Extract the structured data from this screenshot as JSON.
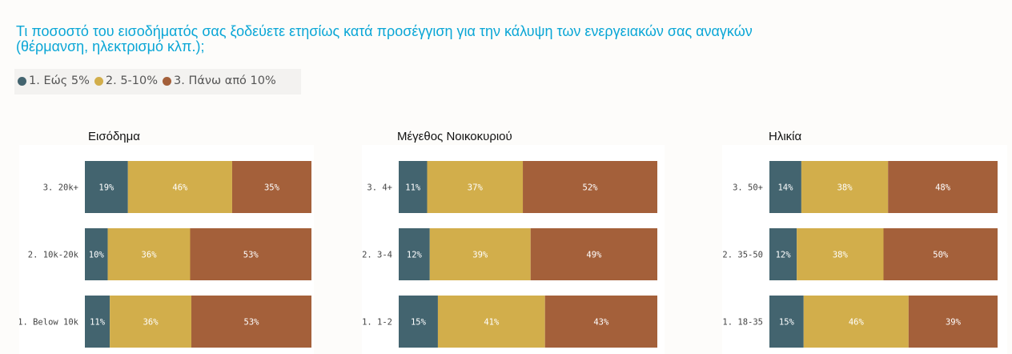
{
  "title": "Τι ποσοστό του εισοδήματός σας ξοδεύετε ετησίως κατά προσέγγιση για την κάλυψη των ενεργειακών σας αναγκών (θέρμανση, ηλεκτρισμό κλπ.);",
  "legend": [
    {
      "label": "1. Εώς 5%",
      "color": "#43646f"
    },
    {
      "label": "2. 5-10%",
      "color": "#d2ae4b"
    },
    {
      "label": "3. Πάνω από 10%",
      "color": "#a4603a"
    }
  ],
  "chart_data": [
    {
      "type": "bar",
      "orientation": "horizontal",
      "stacked": true,
      "title": "Εισόδημα",
      "categories": [
        "3. 20k+",
        "2. 10k-20k",
        "1. Below 10k"
      ],
      "series": [
        {
          "name": "1. Εώς 5%",
          "values": [
            19,
            10,
            11
          ]
        },
        {
          "name": "2. 5-10%",
          "values": [
            46,
            36,
            36
          ]
        },
        {
          "name": "3. Πάνω από 10%",
          "values": [
            35,
            53,
            53
          ]
        }
      ]
    },
    {
      "type": "bar",
      "orientation": "horizontal",
      "stacked": true,
      "title": "Μέγεθος Νοικοκυριού",
      "categories": [
        "3. 4+",
        "2. 3-4",
        "1. 1-2"
      ],
      "series": [
        {
          "name": "1. Εώς 5%",
          "values": [
            11,
            12,
            15
          ]
        },
        {
          "name": "2. 5-10%",
          "values": [
            37,
            39,
            41
          ]
        },
        {
          "name": "3. Πάνω από 10%",
          "values": [
            52,
            49,
            43
          ]
        }
      ]
    },
    {
      "type": "bar",
      "orientation": "horizontal",
      "stacked": true,
      "title": "Ηλικία",
      "categories": [
        "3. 50+",
        "2. 35-50",
        "1. 18-35"
      ],
      "series": [
        {
          "name": "1. Εώς 5%",
          "values": [
            14,
            12,
            15
          ]
        },
        {
          "name": "2. 5-10%",
          "values": [
            38,
            38,
            46
          ]
        },
        {
          "name": "3. Πάνω από 10%",
          "values": [
            48,
            50,
            39
          ]
        }
      ]
    }
  ]
}
